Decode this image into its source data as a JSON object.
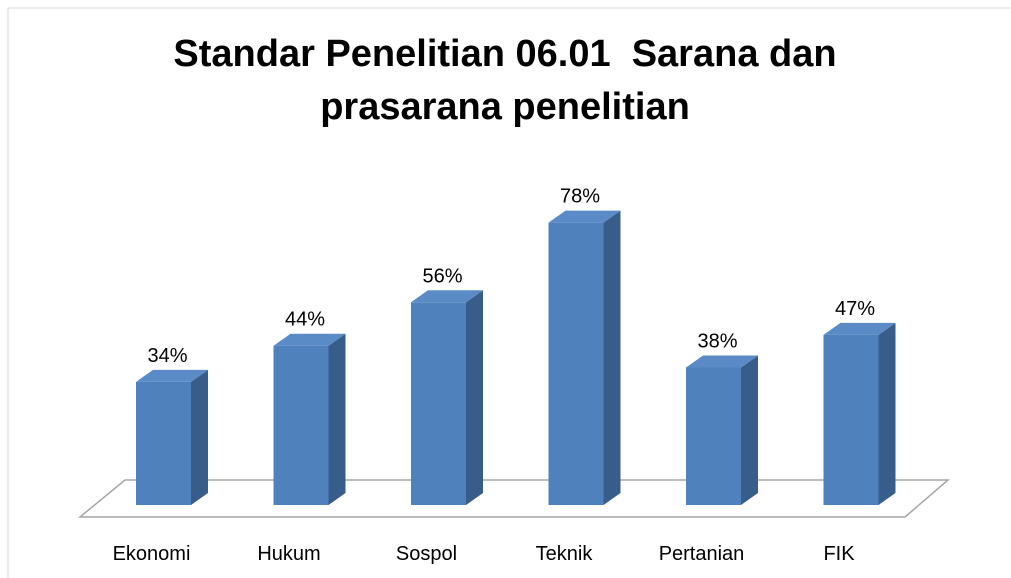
{
  "chart_data": {
    "type": "bar3d",
    "title": "Standar Penelitian 06.01  Sarana dan prasarana penelitian",
    "categories": [
      "Ekonomi",
      "Hukum",
      "Sospol",
      "Teknik",
      "Pertanian",
      "FIK"
    ],
    "values": [
      34,
      44,
      56,
      78,
      38,
      47
    ],
    "value_labels": [
      "34%",
      "44%",
      "56%",
      "78%",
      "38%",
      "47%"
    ],
    "color": "#4f81bd"
  }
}
